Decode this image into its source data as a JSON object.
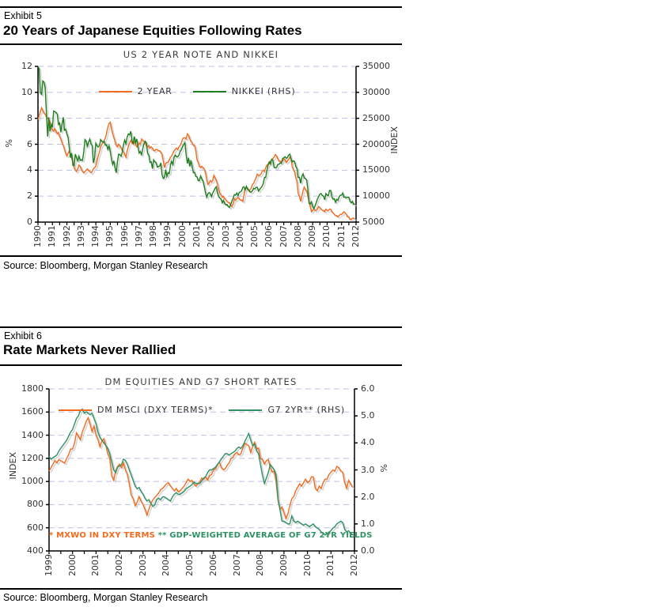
{
  "exhibit5": {
    "label": "Exhibit 5",
    "title": "20 Years of Japanese Equities Following Rates",
    "source": "Source: Bloomberg, Morgan Stanley Research"
  },
  "exhibit6": {
    "label": "Exhibit 6",
    "title": "Rate Markets Never Rallied",
    "source": "Source: Bloomberg, Morgan Stanley Research"
  },
  "colors": {
    "orange": "#F26B1D",
    "green_nikkei": "#1E7D1E",
    "green_g7": "#2E9163",
    "grid": "#BFBFE6",
    "shadow": "#C9C9C9"
  },
  "chart_data": [
    {
      "type": "line",
      "title": "US 2 YEAR NOTE AND NIKKEI",
      "x_range": [
        1990,
        2012
      ],
      "x_ticks": [
        "1990",
        "1991",
        "1992",
        "1993",
        "1994",
        "1995",
        "1996",
        "1997",
        "1998",
        "1999",
        "2000",
        "2001",
        "2002",
        "2003",
        "2004",
        "2005",
        "2006",
        "2007",
        "2008",
        "2009",
        "2010",
        "2011",
        "2012"
      ],
      "left_axis": {
        "label": "%",
        "min": 0,
        "max": 12,
        "ticks": [
          "12",
          "10",
          "8",
          "6",
          "4",
          "2",
          "0"
        ]
      },
      "right_axis": {
        "label": "INDEX",
        "min": 5000,
        "max": 35000,
        "ticks": [
          "35000",
          "30000",
          "25000",
          "20000",
          "15000",
          "10000",
          "5000"
        ]
      },
      "grid": true,
      "legend_position": "top-center",
      "series": [
        {
          "name": "2 YEAR",
          "axis": "left",
          "color": "#F26B1D",
          "start_year": 1990,
          "points_per_year": 12,
          "values": [
            7.9,
            8.2,
            8.5,
            8.8,
            8.6,
            8.4,
            8.3,
            8.1,
            8.0,
            7.9,
            7.7,
            7.3,
            7.1,
            7.0,
            7.2,
            7.0,
            6.8,
            6.9,
            6.6,
            6.4,
            6.1,
            5.9,
            5.6,
            5.3,
            5.1,
            5.3,
            5.5,
            5.2,
            4.9,
            4.6,
            4.2,
            4.0,
            3.9,
            4.1,
            4.4,
            4.3,
            4.1,
            3.9,
            3.8,
            3.9,
            4.0,
            4.1,
            4.0,
            3.9,
            3.8,
            3.9,
            4.1,
            4.2,
            4.3,
            4.7,
            5.1,
            5.4,
            5.8,
            6.0,
            6.1,
            6.3,
            6.5,
            6.9,
            7.3,
            7.6,
            7.7,
            7.2,
            6.8,
            6.5,
            6.2,
            5.9,
            5.8,
            6.0,
            5.9,
            5.7,
            5.5,
            5.4,
            5.2,
            5.0,
            5.5,
            5.8,
            6.1,
            6.3,
            6.1,
            6.0,
            6.2,
            6.0,
            5.8,
            5.9,
            6.1,
            6.0,
            6.4,
            6.3,
            6.2,
            6.1,
            5.9,
            5.8,
            5.9,
            5.7,
            5.8,
            5.7,
            5.5,
            5.5,
            5.6,
            5.6,
            5.5,
            5.5,
            5.4,
            5.2,
            4.7,
            4.2,
            4.5,
            4.6,
            4.6,
            4.8,
            5.0,
            5.1,
            5.3,
            5.5,
            5.6,
            5.7,
            5.6,
            5.8,
            5.9,
            6.1,
            6.4,
            6.5,
            6.5,
            6.4,
            6.8,
            6.7,
            6.4,
            6.2,
            6.1,
            5.9,
            5.9,
            5.5,
            4.8,
            4.6,
            4.3,
            4.2,
            4.3,
            4.2,
            4.1,
            3.8,
            3.3,
            2.9,
            3.0,
            3.2,
            3.1,
            3.2,
            3.6,
            3.4,
            3.2,
            2.9,
            2.5,
            2.2,
            2.1,
            1.9,
            2.0,
            1.8,
            1.7,
            1.6,
            1.5,
            1.5,
            1.3,
            1.2,
            1.4,
            1.8,
            1.7,
            1.8,
            1.9,
            1.8,
            1.7,
            1.7,
            1.6,
            2.1,
            2.5,
            2.7,
            2.6,
            2.4,
            2.5,
            2.6,
            2.9,
            3.0,
            3.2,
            3.4,
            3.7,
            3.6,
            3.6,
            3.7,
            3.9,
            4.0,
            3.9,
            4.2,
            4.4,
            4.4,
            4.5,
            4.7,
            4.8,
            4.9,
            5.0,
            5.2,
            5.1,
            4.9,
            4.7,
            4.7,
            4.6,
            4.7,
            4.9,
            4.8,
            4.6,
            4.7,
            4.8,
            5.0,
            4.9,
            4.3,
            4.0,
            3.9,
            3.4,
            3.1,
            2.2,
            2.0,
            1.6,
            2.0,
            2.4,
            2.7,
            2.5,
            2.4,
            2.0,
            1.6,
            1.2,
            0.8,
            0.9,
            1.0,
            0.9,
            0.9,
            1.0,
            1.2,
            1.1,
            1.0,
            0.9,
            0.9,
            0.8,
            1.0,
            0.9,
            0.9,
            1.0,
            1.0,
            0.8,
            0.7,
            0.6,
            0.5,
            0.5,
            0.4,
            0.5,
            0.6,
            0.6,
            0.7,
            0.8,
            0.7,
            0.6,
            0.4,
            0.4,
            0.2,
            0.2,
            0.3,
            0.3,
            0.25
          ]
        },
        {
          "name": "NIKKEI (RHS)",
          "axis": "right",
          "color": "#1E7D1E",
          "start_year": 1990,
          "points_per_year": 12,
          "values": [
            35000,
            34500,
            29900,
            29600,
            32200,
            32000,
            31000,
            25900,
            21500,
            25200,
            22500,
            23800,
            23300,
            26400,
            26300,
            26100,
            25800,
            23800,
            24100,
            22300,
            23900,
            25200,
            22700,
            22900,
            22000,
            21300,
            19300,
            17400,
            18300,
            15900,
            15900,
            18100,
            17400,
            16800,
            17700,
            16900,
            17000,
            16900,
            18600,
            20900,
            20600,
            19600,
            20400,
            21000,
            20100,
            19700,
            16400,
            17400,
            20200,
            19700,
            19500,
            19700,
            20900,
            20600,
            20400,
            20600,
            19800,
            19900,
            19000,
            19700,
            18600,
            17100,
            16100,
            16800,
            15400,
            14500,
            16700,
            18100,
            18000,
            17700,
            18500,
            19900,
            20800,
            20100,
            21400,
            22000,
            21800,
            22500,
            20700,
            20200,
            21500,
            20300,
            21000,
            19400,
            18300,
            18600,
            18000,
            19200,
            20100,
            20600,
            20300,
            18200,
            17900,
            16500,
            16600,
            15300,
            17000,
            16600,
            16500,
            15600,
            15700,
            15800,
            16400,
            14100,
            13400,
            13600,
            15100,
            13800,
            14500,
            14400,
            16000,
            16700,
            16100,
            17500,
            17900,
            17600,
            17600,
            17900,
            18600,
            18900,
            19500,
            19900,
            20300,
            17900,
            16300,
            17400,
            15700,
            16900,
            15700,
            14500,
            14600,
            13800,
            13700,
            13000,
            13000,
            13900,
            13300,
            12900,
            11900,
            10700,
            9800,
            10400,
            10700,
            10500,
            9900,
            10600,
            11000,
            11500,
            11800,
            10600,
            9900,
            9600,
            9400,
            8700,
            9200,
            8600,
            8300,
            8400,
            8000,
            7800,
            8400,
            9100,
            9600,
            10300,
            10200,
            10600,
            10100,
            10700,
            10800,
            11000,
            11700,
            11800,
            11200,
            11900,
            11300,
            11200,
            10800,
            10800,
            11000,
            11500,
            11400,
            11700,
            11700,
            11000,
            11300,
            11600,
            11900,
            12400,
            13600,
            13600,
            14900,
            16100,
            16600,
            16200,
            17100,
            16900,
            15500,
            15500,
            15500,
            16100,
            16100,
            16400,
            16300,
            17200,
            17400,
            17600,
            17300,
            17400,
            17900,
            18100,
            17200,
            16600,
            16800,
            16700,
            15700,
            15300,
            13600,
            13600,
            12500,
            13800,
            14300,
            13500,
            13400,
            13100,
            11300,
            8600,
            8500,
            8900,
            8000,
            7600,
            8100,
            8800,
            9500,
            9900,
            10400,
            10500,
            10100,
            10000,
            9300,
            10500,
            10200,
            10100,
            11100,
            11100,
            9800,
            9400,
            9500,
            8800,
            9400,
            9200,
            9900,
            10200,
            10200,
            10600,
            9800,
            9800,
            9700,
            9800,
            9800,
            9000,
            8700,
            9000,
            8400,
            8500
          ]
        }
      ]
    },
    {
      "type": "line",
      "title": "DM EQUITIES AND G7 SHORT RATES",
      "x_range": [
        1999,
        2012
      ],
      "x_ticks": [
        "1999",
        "2000",
        "2001",
        "2002",
        "2003",
        "2004",
        "2005",
        "2006",
        "2007",
        "2008",
        "2009",
        "2010",
        "2011",
        "2012"
      ],
      "left_axis": {
        "label": "INDEX",
        "min": 400,
        "max": 1800,
        "ticks": [
          "1800",
          "1600",
          "1400",
          "1200",
          "1000",
          "800",
          "600",
          "400"
        ]
      },
      "right_axis": {
        "label": "%",
        "min": 0.0,
        "max": 6.0,
        "ticks": [
          "6.0",
          "5.0",
          "4.0",
          "3.0",
          "2.0",
          "1.0",
          "0.0"
        ]
      },
      "grid": true,
      "legend_position": "top-center",
      "footnotes": {
        "dxy": "* MXWO IN DXY TERMS",
        "gdp": "** GDP-WEIGHTED AVERAGE OF G7 2YR YIELDS"
      },
      "series": [
        {
          "name": "DM MSCI (DXY TERMS)*",
          "axis": "left",
          "color": "#F26B1D",
          "start_year": 1999,
          "points_per_year": 12,
          "values": [
            1090,
            1120,
            1150,
            1180,
            1160,
            1190,
            1180,
            1170,
            1160,
            1200,
            1230,
            1280,
            1280,
            1330,
            1420,
            1390,
            1360,
            1430,
            1470,
            1520,
            1550,
            1490,
            1430,
            1480,
            1400,
            1360,
            1300,
            1350,
            1370,
            1310,
            1240,
            1200,
            1050,
            1010,
            1090,
            1130,
            1150,
            1120,
            1160,
            1100,
            1060,
            980,
            880,
            850,
            790,
            820,
            870,
            830,
            800,
            760,
            710,
            760,
            810,
            840,
            860,
            880,
            900,
            930,
            940,
            960,
            980,
            990,
            960,
            940,
            920,
            940,
            910,
            920,
            940,
            960,
            990,
            1020,
            1000,
            1010,
            980,
            960,
            980,
            1000,
            1030,
            1020,
            1040,
            1010,
            1050,
            1060,
            1100,
            1110,
            1140,
            1170,
            1120,
            1100,
            1110,
            1140,
            1160,
            1200,
            1210,
            1240,
            1250,
            1230,
            1240,
            1290,
            1330,
            1320,
            1310,
            1250,
            1300,
            1340,
            1280,
            1290,
            1200,
            1190,
            1150,
            1180,
            1190,
            1120,
            1080,
            1090,
            990,
            830,
            760,
            780,
            730,
            680,
            720,
            790,
            850,
            870,
            920,
            950,
            980,
            960,
            990,
            1020,
            990,
            1000,
            1040,
            1040,
            940,
            920,
            960,
            940,
            990,
            1020,
            1020,
            1060,
            1080,
            1100,
            1090,
            1130,
            1120,
            1090,
            1080,
            990,
            940,
            1010,
            980,
            950
          ]
        },
        {
          "name": "G7 2YR** (RHS)",
          "axis": "right",
          "color": "#2E9163",
          "start_year": 1999,
          "points_per_year": 12,
          "values": [
            3.5,
            3.4,
            3.45,
            3.5,
            3.55,
            3.7,
            3.8,
            3.9,
            4.0,
            4.1,
            4.25,
            4.4,
            4.5,
            4.7,
            4.9,
            5.0,
            5.2,
            5.25,
            5.1,
            5.15,
            5.1,
            5.05,
            5.1,
            4.9,
            4.7,
            4.4,
            4.2,
            4.1,
            4.0,
            3.9,
            3.8,
            3.6,
            3.3,
            3.0,
            2.9,
            3.1,
            3.15,
            3.2,
            3.4,
            3.35,
            3.2,
            3.0,
            2.8,
            2.6,
            2.4,
            2.3,
            2.35,
            2.2,
            2.1,
            1.95,
            1.85,
            1.9,
            1.75,
            1.65,
            1.7,
            1.9,
            1.95,
            1.9,
            2.0,
            2.0,
            1.95,
            1.9,
            1.85,
            2.0,
            2.1,
            2.15,
            2.1,
            2.1,
            2.15,
            2.2,
            2.3,
            2.35,
            2.4,
            2.45,
            2.55,
            2.5,
            2.5,
            2.5,
            2.6,
            2.7,
            2.75,
            2.9,
            3.0,
            3.0,
            3.05,
            3.1,
            3.2,
            3.3,
            3.4,
            3.5,
            3.6,
            3.6,
            3.55,
            3.6,
            3.65,
            3.7,
            3.8,
            3.85,
            3.8,
            3.9,
            4.05,
            4.2,
            4.35,
            4.1,
            3.9,
            3.95,
            3.7,
            3.6,
            3.2,
            2.8,
            2.5,
            2.7,
            2.9,
            3.2,
            3.1,
            3.0,
            2.8,
            1.9,
            1.5,
            1.1,
            1.1,
            1.05,
            1.0,
            1.0,
            1.3,
            1.1,
            1.05,
            1.1,
            1.05,
            1.0,
            0.95,
            1.0,
            0.95,
            0.9,
            0.95,
            1.0,
            0.9,
            0.85,
            0.8,
            0.7,
            0.65,
            0.6,
            0.65,
            0.7,
            0.75,
            0.85,
            0.9,
            1.0,
            1.05,
            1.1,
            1.05,
            0.8,
            0.7,
            0.75,
            0.65,
            0.6
          ]
        }
      ]
    }
  ]
}
